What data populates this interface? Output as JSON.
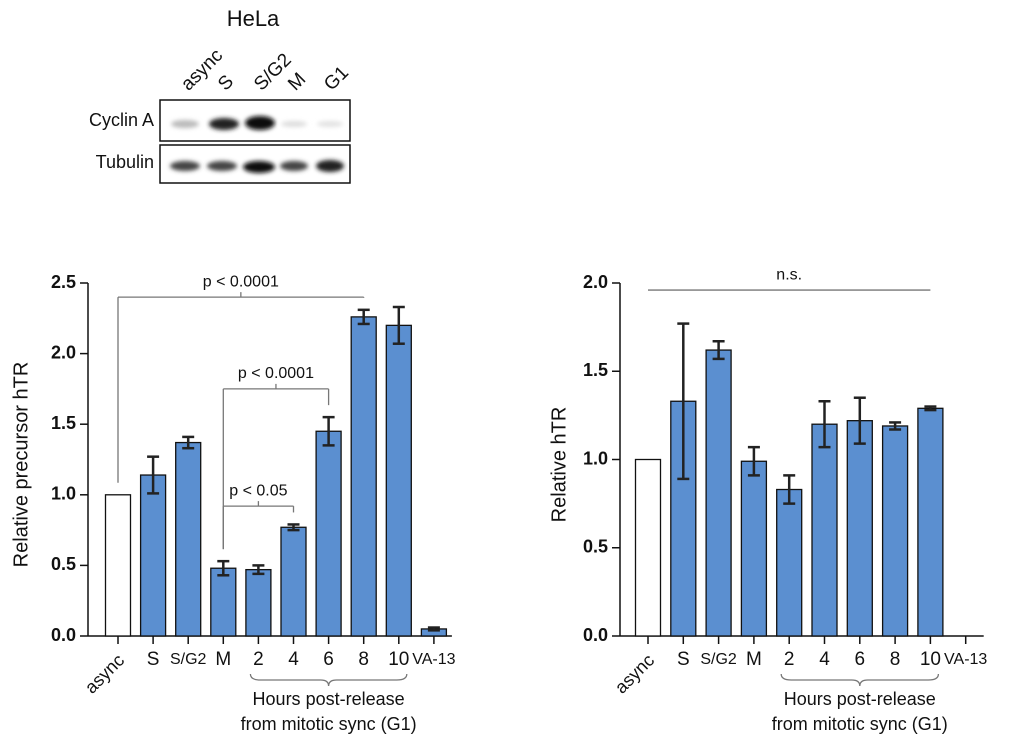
{
  "blot": {
    "title": "HeLa",
    "lanes": [
      "async",
      "S",
      "S/G2",
      "M",
      "G1"
    ],
    "rows": [
      "Cyclin A",
      "Tubulin"
    ]
  },
  "chart_data": [
    {
      "type": "bar",
      "ylabel": "Relative precursor hTR",
      "categories": [
        "async",
        "S",
        "S/G2",
        "M",
        "2",
        "4",
        "6",
        "8",
        "10",
        "VA-13"
      ],
      "values": [
        1.0,
        1.14,
        1.37,
        0.48,
        0.47,
        0.77,
        1.45,
        2.26,
        2.2,
        0.05
      ],
      "errors": [
        null,
        0.13,
        0.04,
        0.05,
        0.03,
        0.02,
        0.1,
        0.05,
        0.13,
        0.01
      ],
      "colors": [
        "#ffffff",
        "#5b8fd0",
        "#5b8fd0",
        "#5b8fd0",
        "#5b8fd0",
        "#5b8fd0",
        "#5b8fd0",
        "#5b8fd0",
        "#5b8fd0",
        "#5b8fd0"
      ],
      "ylim": [
        0,
        2.5
      ],
      "yticks": [
        {
          "value": 0,
          "label": "0.0"
        },
        {
          "value": 0.5,
          "label": "0.5"
        },
        {
          "value": 1,
          "label": "1.0"
        },
        {
          "value": 1.5,
          "label": "1.5"
        },
        {
          "value": 2,
          "label": "2.0"
        },
        {
          "value": 2.5,
          "label": "2.5"
        }
      ],
      "annotations": [
        "p < 0.0001",
        "p < 0.0001",
        "p < 0.05"
      ],
      "group_label": [
        "Hours post-release",
        "from mitotic sync (G1)"
      ]
    },
    {
      "type": "bar",
      "ylabel": "Relative hTR",
      "categories": [
        "async",
        "S",
        "S/G2",
        "M",
        "2",
        "4",
        "6",
        "8",
        "10",
        "VA-13"
      ],
      "values": [
        1.0,
        1.33,
        1.62,
        0.99,
        0.83,
        1.2,
        1.22,
        1.19,
        1.29,
        null
      ],
      "errors": [
        null,
        0.44,
        0.05,
        0.08,
        0.08,
        0.13,
        0.13,
        0.02,
        0.01,
        null
      ],
      "colors": [
        "#ffffff",
        "#5b8fd0",
        "#5b8fd0",
        "#5b8fd0",
        "#5b8fd0",
        "#5b8fd0",
        "#5b8fd0",
        "#5b8fd0",
        "#5b8fd0",
        "#5b8fd0"
      ],
      "ylim": [
        0,
        2.0
      ],
      "yticks": [
        {
          "value": 0,
          "label": "0.0"
        },
        {
          "value": 0.5,
          "label": "0.5"
        },
        {
          "value": 1,
          "label": "1.0"
        },
        {
          "value": 1.5,
          "label": "1.5"
        },
        {
          "value": 2,
          "label": "2.0"
        }
      ],
      "annotations": [
        "n.s."
      ],
      "group_label": [
        "Hours post-release",
        "from mitotic sync (G1)"
      ]
    }
  ]
}
